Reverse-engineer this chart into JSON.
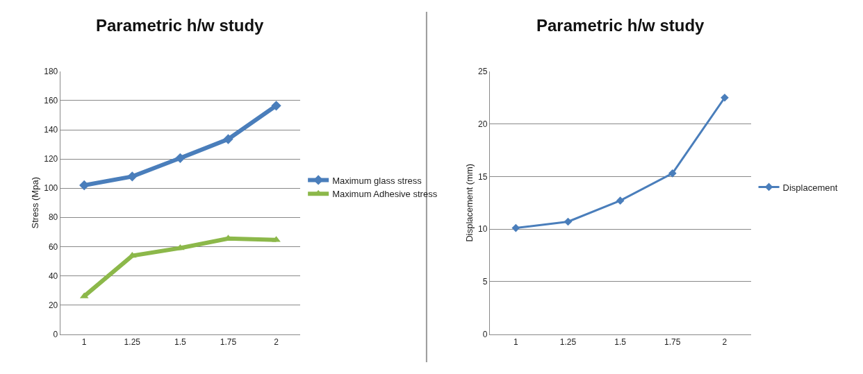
{
  "chart_data": [
    {
      "type": "line",
      "title": "Parametric h/w study",
      "ylabel": "Stress (Mpa)",
      "categories": [
        "1",
        "1.25",
        "1.5",
        "1.75",
        "2"
      ],
      "ylim": [
        0,
        180
      ],
      "yticks": [
        0,
        20,
        40,
        60,
        80,
        100,
        120,
        140,
        160,
        180
      ],
      "grid": "y",
      "legend": "right",
      "line_style": "solid",
      "series": [
        {
          "name": "Maximum glass stress",
          "color": "#4a7ebb",
          "marker": "diamond",
          "values": [
            102,
            108,
            120.6,
            133.6,
            156.5
          ]
        },
        {
          "name": "Maximum Adhesive stress",
          "color": "#8cb84a",
          "marker": "triangle",
          "values": [
            26,
            53.7,
            59,
            65.5,
            64.6
          ]
        }
      ]
    },
    {
      "type": "line",
      "title": "Parametric h/w study",
      "ylabel": "Displacement (mm)",
      "categories": [
        "1",
        "1.25",
        "1.5",
        "1.75",
        "2"
      ],
      "ylim": [
        0,
        25
      ],
      "yticks": [
        0,
        5,
        10,
        15,
        20,
        25
      ],
      "grid": "y",
      "legend": "right",
      "line_style": "solid",
      "series": [
        {
          "name": "Displacement",
          "color": "#4a7ebb",
          "marker": "diamond",
          "values": [
            10.1,
            10.7,
            12.7,
            15.3,
            22.5
          ]
        }
      ]
    }
  ]
}
